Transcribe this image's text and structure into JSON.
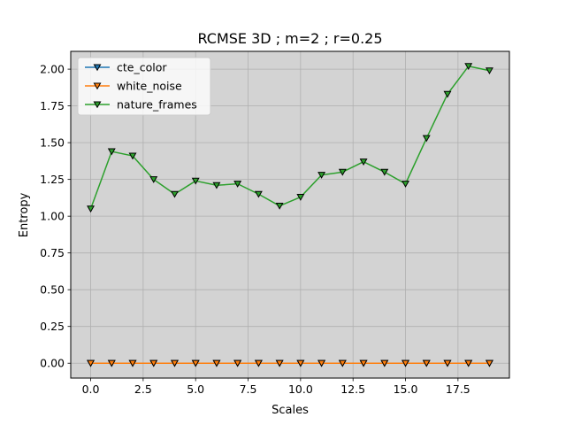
{
  "chart_data": {
    "type": "line",
    "title": "RCMSE 3D ; m=2 ; r=0.25",
    "xlabel": "Scales",
    "ylabel": "Entropy",
    "xlim": [
      -0.95,
      19.95
    ],
    "ylim": [
      -0.101,
      2.121
    ],
    "x_ticks": [
      0,
      2.5,
      5,
      7.5,
      10,
      12.5,
      15,
      17.5
    ],
    "x_tick_labels": [
      "0.0",
      "2.5",
      "5.0",
      "7.5",
      "10.0",
      "12.5",
      "15.0",
      "17.5"
    ],
    "y_ticks": [
      0,
      0.25,
      0.5,
      0.75,
      1.0,
      1.25,
      1.5,
      1.75,
      2.0
    ],
    "y_tick_labels": [
      "0.00",
      "0.25",
      "0.50",
      "0.75",
      "1.00",
      "1.25",
      "1.50",
      "1.75",
      "2.00"
    ],
    "grid": true,
    "legend_position": "top-left",
    "background": "#d3d3d3",
    "x": [
      0,
      1,
      2,
      3,
      4,
      5,
      6,
      7,
      8,
      9,
      10,
      11,
      12,
      13,
      14,
      15,
      16,
      17,
      18,
      19
    ],
    "series": [
      {
        "name": "cte_color",
        "color": "#1f77b4",
        "marker": "triangle-down",
        "values": [
          0,
          0,
          0,
          0,
          0,
          0,
          0,
          0,
          0,
          0,
          0,
          0,
          0,
          0,
          0,
          0,
          0,
          0,
          0,
          0
        ]
      },
      {
        "name": "white_noise",
        "color": "#ff7f0e",
        "marker": "triangle-down",
        "values": [
          0,
          0,
          0,
          0,
          0,
          0,
          0,
          0,
          0,
          0,
          0,
          0,
          0,
          0,
          0,
          0,
          0,
          0,
          0,
          0
        ]
      },
      {
        "name": "nature_frames",
        "color": "#2ca02c",
        "marker": "triangle-down",
        "values": [
          1.05,
          1.44,
          1.41,
          1.25,
          1.15,
          1.24,
          1.21,
          1.22,
          1.15,
          1.07,
          1.13,
          1.28,
          1.3,
          1.37,
          1.3,
          1.22,
          1.53,
          1.83,
          2.02,
          1.99
        ]
      }
    ]
  }
}
